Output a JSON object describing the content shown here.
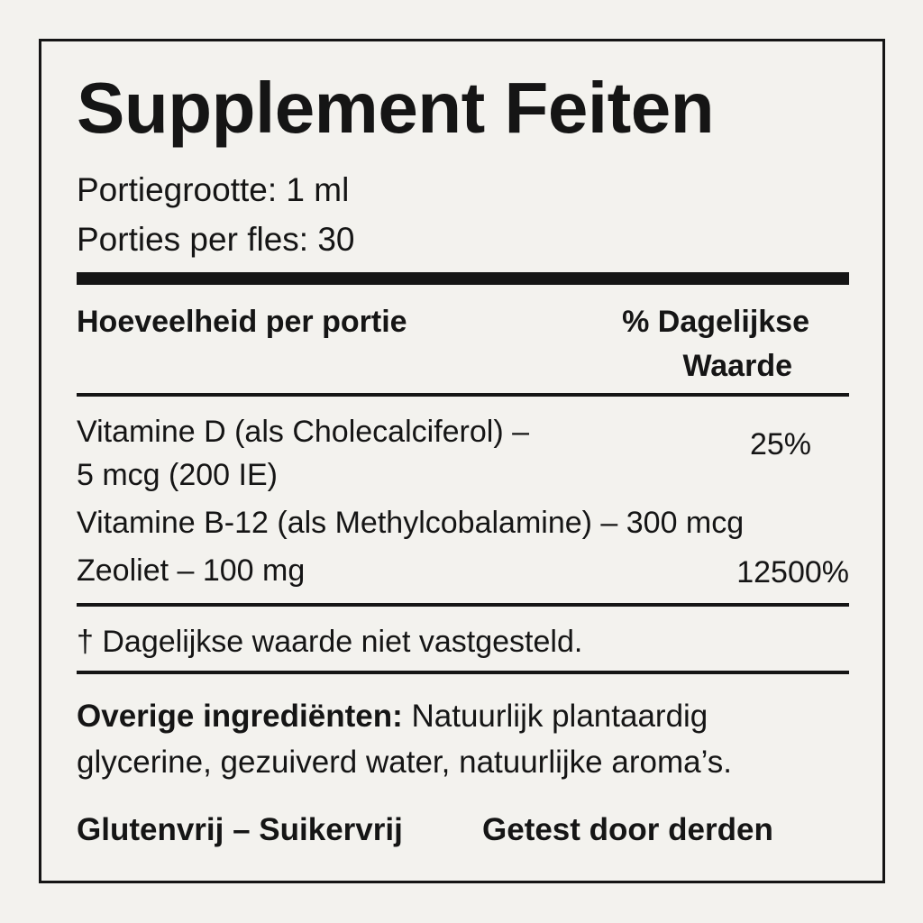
{
  "title": "Supplement Feiten",
  "serving": {
    "size": "Portiegrootte: 1 ml",
    "per_container": "Porties per fles: 30"
  },
  "header": {
    "amount": "Hoeveelheid per portie",
    "daily_value": [
      "% Dagelijkse",
      "Waarde"
    ]
  },
  "rows": [
    {
      "name": [
        "Vitamine D (als Cholecalciferol) –",
        "5 mcg (200 IE)"
      ],
      "dv": "25%"
    },
    {
      "name": [
        "Vitamine B-12 (als Methylcobalamine) – 300 mcg"
      ]
    },
    {
      "name": [
        "Zeoliet – 100 mg"
      ],
      "dv": "12500%"
    }
  ],
  "footnote": "† Dagelijkse waarde niet vastgesteld.",
  "other": {
    "label": "Overige ingrediënten:",
    "text": [
      "Natuurlijk plantaardig",
      "glycerine, gezuiverd water, natuurlijke aroma’s."
    ]
  },
  "claims": [
    "Glutenvrij – Suikervrij",
    "Getest door derden"
  ]
}
